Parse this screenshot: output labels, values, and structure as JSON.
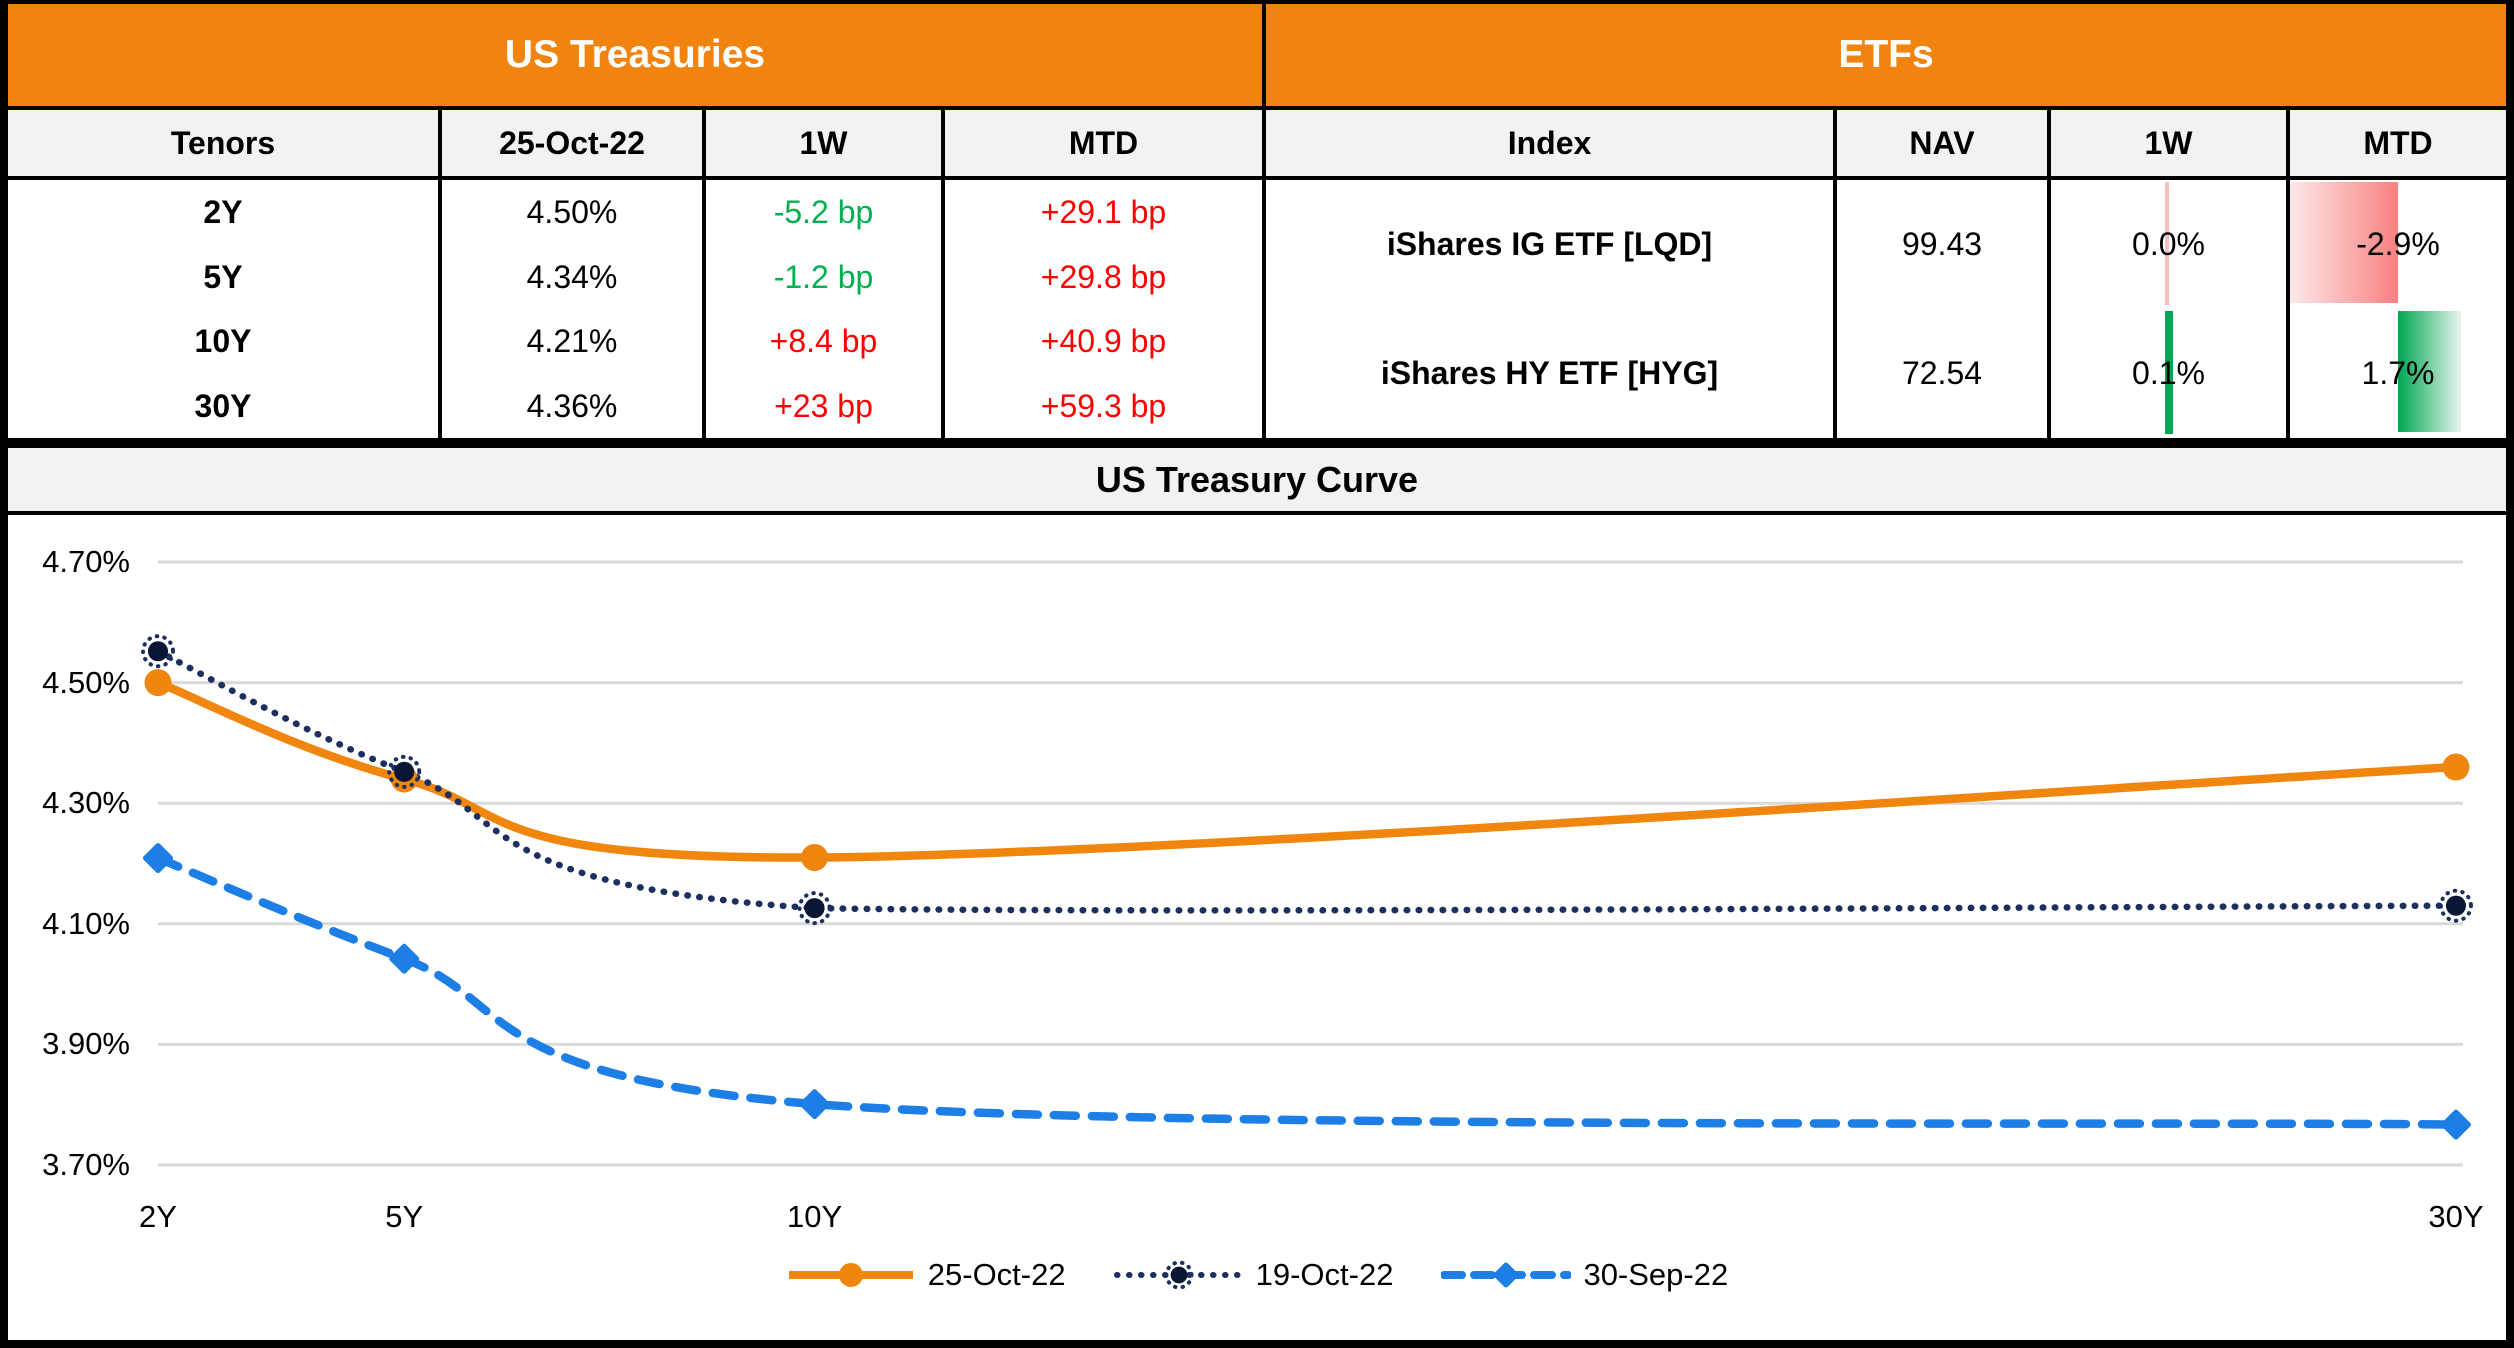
{
  "treasuries_table": {
    "title": "US Treasuries",
    "headers": [
      "Tenors",
      "25-Oct-22",
      "1W",
      "MTD"
    ],
    "rows": [
      {
        "tenor": "2Y",
        "rate": "4.50%",
        "w1": "-5.2 bp",
        "w1_color": "#00B050",
        "mtd": "+29.1 bp"
      },
      {
        "tenor": "5Y",
        "rate": "4.34%",
        "w1": "-1.2 bp",
        "w1_color": "#00B050",
        "mtd": "+29.8 bp"
      },
      {
        "tenor": "10Y",
        "rate": "4.21%",
        "w1": "+8.4 bp",
        "w1_color": "#FF0000",
        "mtd": "+40.9 bp"
      },
      {
        "tenor": "30Y",
        "rate": "4.36%",
        "w1": "+23 bp",
        "w1_color": "#FF0000",
        "mtd": "+59.3 bp"
      }
    ]
  },
  "etfs_table": {
    "title": "ETFs",
    "headers": [
      "Index",
      "NAV",
      "1W",
      "MTD"
    ],
    "rows": [
      {
        "index": "iShares IG ETF [LQD]",
        "nav": "99.43",
        "w1": "0.0%",
        "w1_value": -0.02,
        "mtd": "-2.9%",
        "mtd_value": -2.9
      },
      {
        "index": "iShares HY ETF [HYG]",
        "nav": "72.54",
        "w1": "0.1%",
        "w1_value": 0.1,
        "mtd": "1.7%",
        "mtd_value": 1.7
      }
    ],
    "bar_scale_max": 2.9
  },
  "chart_data": {
    "type": "line",
    "title": "US Treasury Curve",
    "x_categories": [
      "2Y",
      "5Y",
      "10Y",
      "30Y"
    ],
    "x_years": [
      2,
      5,
      10,
      30
    ],
    "yticks": [
      4.7,
      4.5,
      4.3,
      4.1,
      3.9,
      3.7
    ],
    "ytick_labels": [
      "4.70%",
      "4.50%",
      "4.30%",
      "4.10%",
      "3.90%",
      "3.70%"
    ],
    "ylim": [
      3.7,
      4.7
    ],
    "grid": "horizontal",
    "legend_position": "bottom",
    "series": [
      {
        "name": "25-Oct-22",
        "values": [
          4.5,
          4.34,
          4.21,
          4.36
        ],
        "color": "#F1860F",
        "line_style": "solid",
        "marker": "circle"
      },
      {
        "name": "19-Oct-22",
        "values": [
          4.552,
          4.352,
          4.126,
          4.13
        ],
        "color": "#1C2F5E",
        "line_style": "dotted",
        "marker": "star"
      },
      {
        "name": "30-Sep-22",
        "values": [
          4.209,
          4.042,
          3.801,
          3.767
        ],
        "color": "#1D7FE6",
        "line_style": "dashed",
        "marker": "diamond"
      }
    ]
  },
  "colors": {
    "banner_orange": "#F1840E",
    "negative_red": "#FF0000",
    "positive_green": "#00B050",
    "databar_red": "#F98080",
    "databar_green": "#00A651",
    "gridline_grey": "#D9D9D9",
    "header_grey": "#F2F2F2"
  }
}
